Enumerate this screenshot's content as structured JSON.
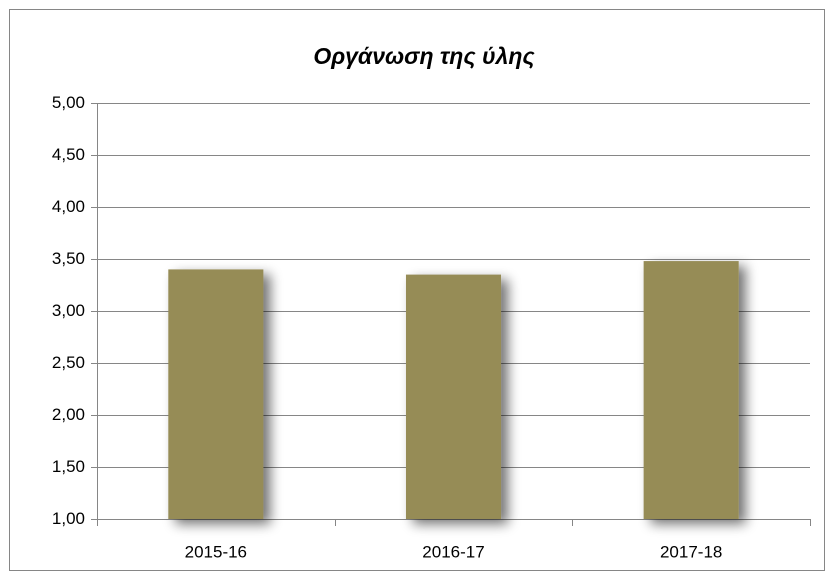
{
  "chart_data": {
    "type": "bar",
    "title": "Οργάνωση της ύλης",
    "categories": [
      "2015-16",
      "2016-17",
      "2017-18"
    ],
    "values": [
      3.4,
      3.35,
      3.48
    ],
    "color": "#968c57",
    "ylim": [
      1,
      5
    ],
    "yticks": [
      {
        "value": 1,
        "label": "1,00"
      },
      {
        "value": 1.5,
        "label": "1,50"
      },
      {
        "value": 2,
        "label": "2,00"
      },
      {
        "value": 2.5,
        "label": "2,50"
      },
      {
        "value": 3,
        "label": "3,00"
      },
      {
        "value": 3.5,
        "label": "3,50"
      },
      {
        "value": 4,
        "label": "4,00"
      },
      {
        "value": 4.5,
        "label": "4,50"
      },
      {
        "value": 5,
        "label": "5,00"
      }
    ],
    "grid": true
  }
}
